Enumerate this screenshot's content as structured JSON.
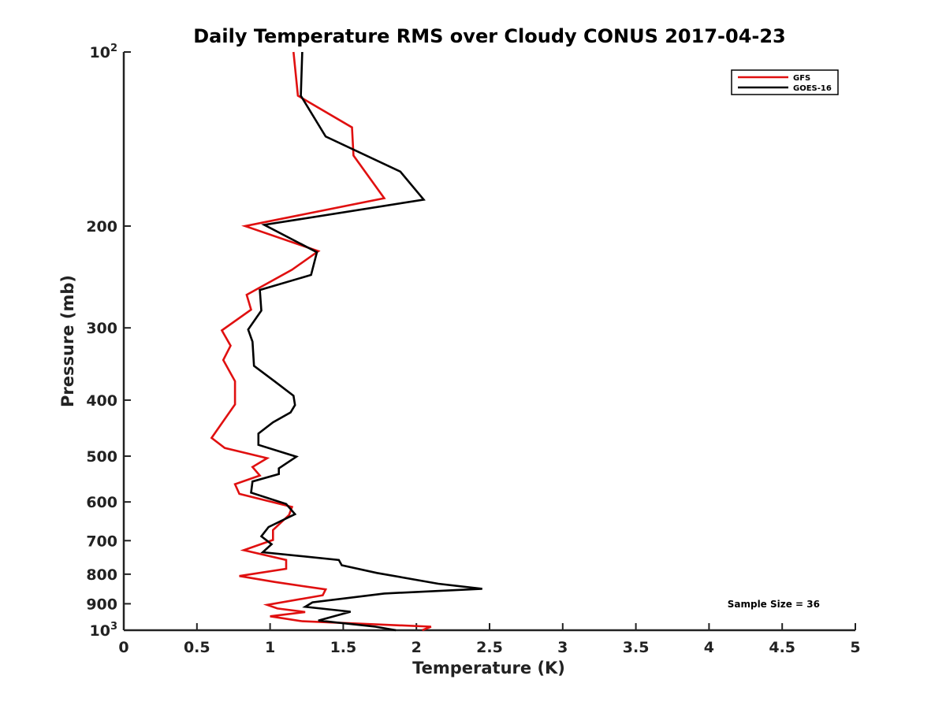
{
  "chart_data": {
    "type": "line",
    "title": "Daily Temperature RMS over Cloudy CONUS 2017-04-23",
    "xlabel": "Temperature (K)",
    "ylabel": "Pressure (mb)",
    "xlim": [
      0,
      5
    ],
    "ylim": [
      100,
      1000
    ],
    "y_scale": "log",
    "y_reversed": true,
    "grid": false,
    "legend_position": "top-right",
    "x_ticks": [
      {
        "value": 0,
        "label": "0"
      },
      {
        "value": 0.5,
        "label": "0.5"
      },
      {
        "value": 1,
        "label": "1"
      },
      {
        "value": 1.5,
        "label": "1.5"
      },
      {
        "value": 2,
        "label": "2"
      },
      {
        "value": 2.5,
        "label": "2.5"
      },
      {
        "value": 3,
        "label": "3"
      },
      {
        "value": 3.5,
        "label": "3.5"
      },
      {
        "value": 4,
        "label": "4"
      },
      {
        "value": 4.5,
        "label": "4.5"
      },
      {
        "value": 5,
        "label": "5"
      }
    ],
    "y_ticks": [
      {
        "value": 100,
        "label": "10",
        "sup": "2"
      },
      {
        "value": 200,
        "label": "200",
        "sup": ""
      },
      {
        "value": 300,
        "label": "300",
        "sup": ""
      },
      {
        "value": 400,
        "label": "400",
        "sup": ""
      },
      {
        "value": 500,
        "label": "500",
        "sup": ""
      },
      {
        "value": 600,
        "label": "600",
        "sup": ""
      },
      {
        "value": 700,
        "label": "700",
        "sup": ""
      },
      {
        "value": 800,
        "label": "800",
        "sup": ""
      },
      {
        "value": 900,
        "label": "900",
        "sup": ""
      },
      {
        "value": 1000,
        "label": "10",
        "sup": "3"
      }
    ],
    "series": [
      {
        "name": "GFS",
        "color": "#e01010",
        "points": [
          [
            1.16,
            100
          ],
          [
            1.19,
            119
          ],
          [
            1.56,
            135
          ],
          [
            1.57,
            151
          ],
          [
            1.78,
            179
          ],
          [
            0.83,
            200
          ],
          [
            1.33,
            221
          ],
          [
            1.15,
            238
          ],
          [
            0.84,
            263
          ],
          [
            0.87,
            279
          ],
          [
            0.67,
            303
          ],
          [
            0.73,
            322
          ],
          [
            0.68,
            341
          ],
          [
            0.76,
            371
          ],
          [
            0.76,
            407
          ],
          [
            0.6,
            465
          ],
          [
            0.69,
            484
          ],
          [
            0.98,
            504
          ],
          [
            0.88,
            522
          ],
          [
            0.93,
            540
          ],
          [
            0.76,
            559
          ],
          [
            0.79,
            581
          ],
          [
            1.15,
            612
          ],
          [
            1.13,
            632
          ],
          [
            1.02,
            671
          ],
          [
            1.02,
            698
          ],
          [
            0.82,
            727
          ],
          [
            1.11,
            756
          ],
          [
            1.11,
            783
          ],
          [
            0.79,
            806
          ],
          [
            1.03,
            825
          ],
          [
            1.38,
            850
          ],
          [
            1.36,
            870
          ],
          [
            0.98,
            904
          ],
          [
            1.05,
            917
          ],
          [
            1.24,
            930
          ],
          [
            1.0,
            946
          ],
          [
            1.22,
            965
          ],
          [
            2.1,
            986
          ],
          [
            2.04,
            1000
          ]
        ]
      },
      {
        "name": "GOES-16",
        "color": "#000000",
        "points": [
          [
            1.22,
            100
          ],
          [
            1.21,
            119
          ],
          [
            1.38,
            140
          ],
          [
            1.89,
            161
          ],
          [
            2.05,
            180
          ],
          [
            0.96,
            199
          ],
          [
            1.32,
            222
          ],
          [
            1.28,
            243
          ],
          [
            0.93,
            258
          ],
          [
            0.94,
            280
          ],
          [
            0.85,
            302
          ],
          [
            0.88,
            317
          ],
          [
            0.89,
            349
          ],
          [
            1.03,
            371
          ],
          [
            1.16,
            393
          ],
          [
            1.17,
            408
          ],
          [
            1.14,
            420
          ],
          [
            1.02,
            437
          ],
          [
            0.92,
            457
          ],
          [
            0.92,
            478
          ],
          [
            1.18,
            501
          ],
          [
            1.06,
            525
          ],
          [
            1.06,
            537
          ],
          [
            0.88,
            553
          ],
          [
            0.87,
            578
          ],
          [
            1.11,
            605
          ],
          [
            1.17,
            630
          ],
          [
            0.99,
            663
          ],
          [
            0.94,
            688
          ],
          [
            1.01,
            710
          ],
          [
            0.95,
            733
          ],
          [
            1.47,
            756
          ],
          [
            1.49,
            772
          ],
          [
            1.73,
            796
          ],
          [
            2.15,
            831
          ],
          [
            2.45,
            848
          ],
          [
            1.78,
            864
          ],
          [
            1.29,
            895
          ],
          [
            1.24,
            911
          ],
          [
            1.55,
            929
          ],
          [
            1.33,
            962
          ],
          [
            1.72,
            986
          ],
          [
            1.86,
            1000
          ]
        ]
      }
    ],
    "annotation": "Sample Size = 36"
  }
}
